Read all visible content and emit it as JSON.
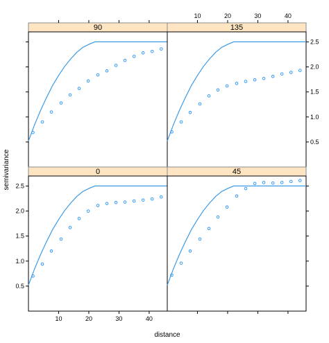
{
  "chart_data": {
    "type": "scatter",
    "layout": "lattice-2x2",
    "xlabel": "distance",
    "ylabel": "semivariance",
    "xlim": [
      0,
      46
    ],
    "ylim": [
      0,
      2.7
    ],
    "x_ticks": [
      10,
      20,
      30,
      40
    ],
    "y_ticks": [
      0.5,
      1.0,
      1.5,
      2.0,
      2.5
    ],
    "y_tick_labels": [
      "0.5",
      "1.0",
      "1.5",
      "2.0",
      "2.5"
    ],
    "colors": {
      "points": "#1e90ff",
      "line": "#3c9be6",
      "strip": "#ffe5c2",
      "strip_border": "#8a8a8a"
    },
    "model_curve": {
      "x": [
        0,
        2,
        4,
        6,
        8,
        10,
        12,
        14,
        16,
        18,
        20,
        22,
        46
      ],
      "y": [
        0.52,
        0.84,
        1.13,
        1.39,
        1.63,
        1.83,
        2.01,
        2.16,
        2.29,
        2.39,
        2.45,
        2.5,
        2.5
      ]
    },
    "panels": [
      {
        "label": "90",
        "x": [
          1.5,
          4.6,
          7.6,
          10.8,
          13.8,
          16.8,
          19.8,
          23.0,
          26.0,
          29.0,
          32.0,
          35.0,
          38.0,
          41.0,
          44.0
        ],
        "y": [
          0.69,
          0.9,
          1.1,
          1.28,
          1.44,
          1.57,
          1.72,
          1.84,
          1.92,
          2.03,
          2.13,
          2.21,
          2.28,
          2.31,
          2.36
        ]
      },
      {
        "label": "135",
        "x": [
          1.5,
          4.6,
          7.6,
          10.8,
          13.8,
          16.8,
          19.8,
          23.0,
          26.0,
          29.0,
          32.0,
          35.0,
          38.0,
          41.0,
          44.0
        ],
        "y": [
          0.7,
          0.9,
          1.09,
          1.26,
          1.42,
          1.54,
          1.62,
          1.67,
          1.71,
          1.74,
          1.77,
          1.81,
          1.86,
          1.89,
          1.93
        ]
      },
      {
        "label": "0",
        "x": [
          1.5,
          4.6,
          7.6,
          10.8,
          13.8,
          16.8,
          19.8,
          23.0,
          26.0,
          29.0,
          32.0,
          35.0,
          38.0,
          41.0,
          44.0
        ],
        "y": [
          0.7,
          0.94,
          1.2,
          1.44,
          1.67,
          1.85,
          2.0,
          2.11,
          2.15,
          2.17,
          2.18,
          2.2,
          2.22,
          2.24,
          2.28
        ]
      },
      {
        "label": "45",
        "x": [
          1.5,
          4.6,
          7.6,
          10.8,
          13.8,
          16.8,
          19.8,
          23.0,
          26.0,
          29.0,
          32.0,
          35.0,
          38.0,
          41.0,
          44.0
        ],
        "y": [
          0.72,
          0.96,
          1.2,
          1.44,
          1.65,
          1.88,
          2.08,
          2.3,
          2.45,
          2.55,
          2.57,
          2.56,
          2.57,
          2.59,
          2.61
        ]
      }
    ]
  }
}
